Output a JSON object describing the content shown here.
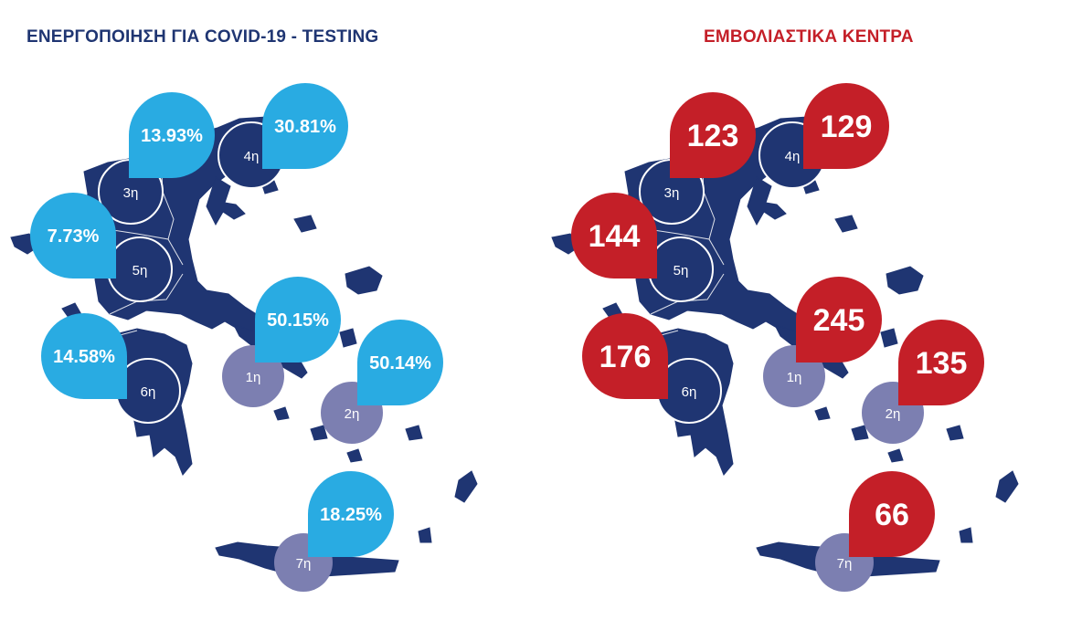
{
  "colors": {
    "land": "#1f3572",
    "region_outline": "#ffffff",
    "faded_region": "#7c7fb1",
    "left_accent": "#29abe2",
    "right_accent": "#c41f28",
    "left_title": "#1f3572",
    "right_title": "#c41f28"
  },
  "left": {
    "title": "ΕΝΕΡΓΟΠΟΙΗΣΗ ΓΙΑ COVID-19 - TESTING",
    "pins": [
      {
        "region": "3η",
        "value": "13.93%"
      },
      {
        "region": "4η",
        "value": "30.81%"
      },
      {
        "region": "5η",
        "value": "7.73%"
      },
      {
        "region": "6η",
        "value": "14.58%"
      },
      {
        "region": "1η",
        "value": "50.15%"
      },
      {
        "region": "2η",
        "value": "50.14%"
      },
      {
        "region": "7η",
        "value": "18.25%"
      }
    ]
  },
  "right": {
    "title": "ΕΜΒΟΛΙΑΣΤΙΚΑ ΚΕΝΤΡΑ",
    "pins": [
      {
        "region": "3η",
        "value": "123"
      },
      {
        "region": "4η",
        "value": "129"
      },
      {
        "region": "5η",
        "value": "144"
      },
      {
        "region": "6η",
        "value": "176"
      },
      {
        "region": "1η",
        "value": "245"
      },
      {
        "region": "2η",
        "value": "135"
      },
      {
        "region": "7η",
        "value": "66"
      }
    ]
  },
  "regions": [
    "1η",
    "2η",
    "3η",
    "4η",
    "5η",
    "6η",
    "7η"
  ]
}
